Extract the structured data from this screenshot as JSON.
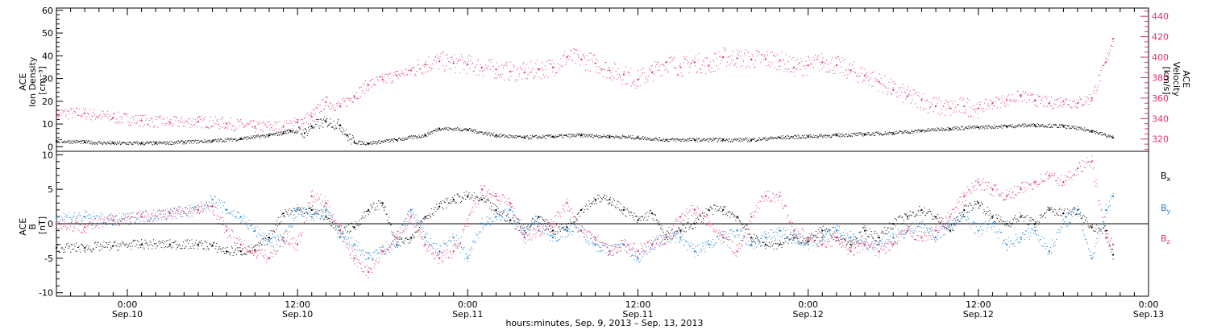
{
  "chart_data": [
    {
      "type": "scatter",
      "panel": "top",
      "ylabel_left_lines": [
        "ACE",
        "Ion Density",
        "[cm⁻³]"
      ],
      "ylabel_right_lines": [
        "ACE",
        "Velocity",
        "[km/s]"
      ],
      "ylim_left": [
        -2,
        61
      ],
      "ylim_right": [
        308,
        448
      ],
      "yticks_left": [
        "0",
        "10",
        "20",
        "30",
        "40",
        "50",
        "60"
      ],
      "yticks_right": [
        "320",
        "340",
        "360",
        "380",
        "400",
        "420",
        "440"
      ],
      "xlim_hours": [
        -5,
        72
      ],
      "series": [
        {
          "color": "#000000",
          "axis": "left",
          "x": [
            -5,
            -3,
            -1,
            1,
            2,
            4,
            6,
            8,
            10,
            11,
            11.5,
            12.5,
            13,
            14,
            15,
            15.5,
            16,
            17,
            19,
            21,
            22,
            24,
            26,
            28,
            30,
            32,
            34,
            36,
            38,
            40,
            42,
            44,
            46,
            48,
            50,
            52,
            54,
            56,
            58,
            60,
            62,
            64,
            66,
            68,
            69.5
          ],
          "y": [
            2.5,
            2,
            1.5,
            1.5,
            1.5,
            2,
            2.5,
            3.5,
            5,
            6,
            7,
            6,
            9,
            11,
            9.5,
            5,
            2,
            1.5,
            3,
            5,
            8,
            7.5,
            5,
            4,
            4.5,
            5,
            4.5,
            4,
            3,
            3,
            3,
            3,
            4,
            4.5,
            5,
            5.5,
            6,
            7,
            8,
            8.5,
            9,
            9.5,
            9,
            7,
            4
          ]
        },
        {
          "color": "#e0306a",
          "axis": "right",
          "x": [
            -5,
            -3,
            -1,
            1,
            3,
            5,
            7,
            9,
            11,
            12,
            13,
            14,
            15,
            16,
            17,
            18,
            19,
            20,
            21,
            22,
            23,
            24,
            25,
            26,
            27,
            28,
            29,
            30,
            31,
            32,
            33,
            34,
            35,
            36,
            37,
            38,
            39,
            40,
            41,
            42,
            43,
            44,
            45,
            46,
            47,
            48,
            49,
            50,
            51,
            52,
            53,
            54,
            55,
            56,
            57,
            58,
            59,
            60,
            61,
            62,
            63,
            64,
            65,
            66,
            67,
            68,
            69,
            69.5
          ],
          "y": [
            345,
            345,
            341,
            338,
            336,
            337,
            335,
            332,
            332,
            336,
            342,
            356,
            352,
            362,
            373,
            378,
            382,
            387,
            393,
            396,
            394,
            393,
            390,
            388,
            386,
            385,
            388,
            390,
            400,
            398,
            394,
            387,
            383,
            378,
            385,
            395,
            390,
            395,
            392,
            400,
            399,
            398,
            398,
            397,
            390,
            392,
            395,
            392,
            387,
            382,
            376,
            368,
            362,
            358,
            352,
            350,
            352,
            350,
            355,
            358,
            362,
            358,
            355,
            357,
            355,
            360,
            395,
            418
          ]
        }
      ]
    },
    {
      "type": "scatter",
      "panel": "bottom",
      "ylabel_lines": [
        "ACE",
        "B",
        "[nT]"
      ],
      "ylim": [
        -10.5,
        10.5
      ],
      "yticks": [
        "-10",
        "-5",
        "0",
        "5",
        "10"
      ],
      "xlim_hours": [
        -5,
        72
      ],
      "xticks": [
        {
          "hour": 0,
          "line1": "0:00",
          "line2": "Sep.10"
        },
        {
          "hour": 12,
          "line1": "12:00",
          "line2": "Sep.10"
        },
        {
          "hour": 24,
          "line1": "0:00",
          "line2": "Sep.11"
        },
        {
          "hour": 36,
          "line1": "12:00",
          "line2": "Sep.11"
        },
        {
          "hour": 48,
          "line1": "0:00",
          "line2": "Sep.12"
        },
        {
          "hour": 60,
          "line1": "12:00",
          "line2": "Sep.12"
        },
        {
          "hour": 72,
          "line1": "0:00",
          "line2": "Sep.13"
        }
      ],
      "xlabel": "hours:minutes, Sep.  9, 2013 – Sep. 13, 2013",
      "legend": "right",
      "series": [
        {
          "name_base": "B",
          "name_sub": "x",
          "color": "#000000",
          "x": [
            -5,
            -3,
            -1,
            1,
            3,
            5,
            6,
            7,
            8,
            9,
            10,
            11,
            12,
            13,
            14,
            15,
            16,
            17,
            18,
            19,
            20,
            21,
            22,
            23,
            24,
            25,
            26,
            27,
            28,
            29,
            30,
            31,
            32,
            33,
            34,
            35,
            36,
            37,
            38,
            39,
            40,
            41,
            42,
            43,
            44,
            45,
            46,
            47,
            48,
            49,
            50,
            51,
            52,
            53,
            54,
            55,
            56,
            57,
            58,
            59,
            60,
            61,
            62,
            63,
            64,
            65,
            66,
            67,
            68,
            69,
            69.5
          ],
          "y": [
            -3.5,
            -3.5,
            -3.2,
            -3,
            -3,
            -3,
            -3.2,
            -4,
            -4,
            -3.8,
            -2,
            1.5,
            2,
            2,
            1,
            -1,
            -0.5,
            2,
            3,
            -3,
            -2,
            1,
            2.5,
            3.5,
            4,
            3.5,
            2,
            0.5,
            -1,
            1,
            -1,
            -0.5,
            2,
            3.5,
            3.5,
            2,
            0.5,
            1.5,
            -2,
            -1,
            0,
            2,
            2,
            1,
            -2,
            -3,
            -3,
            -2,
            -2.5,
            -1,
            -2,
            -3,
            -1,
            -2,
            0,
            1,
            2,
            1,
            -1,
            2,
            3,
            1,
            0,
            1,
            0,
            2,
            1.5,
            2,
            -0.5,
            -1,
            -4.5
          ]
        },
        {
          "name_base": "B",
          "name_sub": "y",
          "color": "#1a7fd6",
          "x": [
            -5,
            -3,
            -1,
            1,
            3,
            5,
            6,
            7,
            8,
            9,
            10,
            11,
            12,
            13,
            14,
            15,
            16,
            17,
            18,
            19,
            20,
            21,
            22,
            23,
            24,
            25,
            26,
            27,
            28,
            29,
            30,
            31,
            32,
            33,
            34,
            35,
            36,
            37,
            38,
            39,
            40,
            41,
            42,
            43,
            44,
            45,
            46,
            47,
            48,
            49,
            50,
            51,
            52,
            53,
            54,
            55,
            56,
            57,
            58,
            59,
            60,
            61,
            62,
            63,
            64,
            65,
            66,
            67,
            68,
            69,
            69.5
          ],
          "y": [
            1,
            1,
            0.5,
            1,
            1.5,
            2,
            3.5,
            2,
            1,
            -1,
            -2.5,
            -2.5,
            2,
            1,
            2,
            -2,
            -3,
            -5,
            -4,
            -3,
            2,
            -2,
            -4,
            -2,
            -5,
            0,
            1,
            2,
            -1,
            0,
            -2,
            -1,
            -1,
            -3,
            -4,
            -3,
            -5,
            -3,
            -2,
            -2,
            -4,
            -3,
            -2,
            -1,
            -3,
            -2,
            -1,
            -2,
            -3,
            -2,
            -1,
            -2,
            -3,
            -3,
            -2,
            -1,
            0,
            -2,
            0,
            1,
            -1,
            0,
            -3,
            -2,
            -1,
            -4,
            0,
            2,
            -5,
            2,
            4
          ]
        },
        {
          "name_base": "B",
          "name_sub": "z",
          "color": "#e0306a",
          "x": [
            -5,
            -3,
            -1,
            1,
            3,
            5,
            6,
            7,
            8,
            9,
            10,
            11,
            12,
            13,
            14,
            15,
            16,
            17,
            18,
            19,
            20,
            21,
            22,
            23,
            24,
            25,
            26,
            27,
            28,
            29,
            30,
            31,
            32,
            33,
            34,
            35,
            36,
            37,
            38,
            39,
            40,
            41,
            42,
            43,
            44,
            45,
            46,
            47,
            48,
            49,
            50,
            51,
            52,
            53,
            54,
            55,
            56,
            57,
            58,
            59,
            60,
            61,
            62,
            63,
            64,
            65,
            66,
            67,
            68,
            69,
            69.5
          ],
          "y": [
            0,
            -0.5,
            0.5,
            1,
            1.5,
            2,
            2.5,
            -1,
            -3,
            -4,
            -5,
            -2,
            -3,
            4,
            3,
            -1,
            -5,
            -7,
            -4,
            -2,
            1,
            -3,
            -5,
            -4,
            0,
            5,
            4,
            3,
            -2,
            -1,
            0,
            3,
            -1,
            -2,
            -4,
            -3,
            -4,
            -3,
            -2,
            1,
            2,
            0,
            -2,
            -4,
            1,
            4,
            4,
            -1,
            -2,
            -3,
            -2,
            -4,
            -3,
            -4,
            -3,
            -1,
            -2,
            -1,
            1,
            4,
            6,
            5,
            4,
            5,
            6,
            7,
            6,
            8,
            9,
            -2,
            -3
          ]
        }
      ]
    }
  ]
}
